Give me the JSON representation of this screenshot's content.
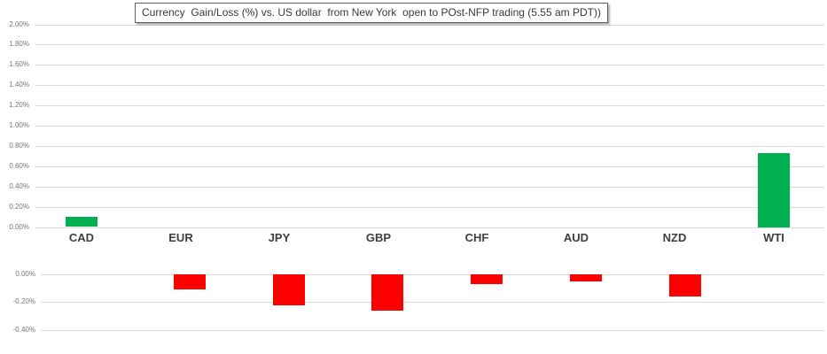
{
  "chart_data": {
    "type": "bar",
    "title": "Currency  Gain/Loss (%) vs. US dollar  from New York  open to POst-NFP trading (5.55 am PDT))",
    "categories": [
      "CAD",
      "EUR",
      "JPY",
      "GBP",
      "CHF",
      "AUD",
      "NZD",
      "WTI"
    ],
    "values": [
      0.1,
      -0.11,
      -0.22,
      -0.26,
      -0.07,
      -0.05,
      -0.16,
      0.73
    ],
    "unit": "%",
    "grid": true,
    "legend": false,
    "top_axis": {
      "max": 2.0,
      "min": 0.0,
      "step": 0.2,
      "tick_labels": [
        "2.00%",
        "1.80%",
        "1.60%",
        "1.40%",
        "1.20%",
        "1.00%",
        "0.80%",
        "0.60%",
        "0.40%",
        "0.20%",
        "0.00%"
      ]
    },
    "bottom_axis": {
      "max": 0.0,
      "min": -0.4,
      "step": 0.2,
      "tick_labels": [
        "0.00%",
        "-0.20%",
        "-0.40%"
      ]
    },
    "colors": {
      "positive": "#00B050",
      "negative": "#FF0000",
      "gridline": "#D9D9D9",
      "tick_text": "#767676",
      "category_text": "#3F3F3F"
    }
  }
}
